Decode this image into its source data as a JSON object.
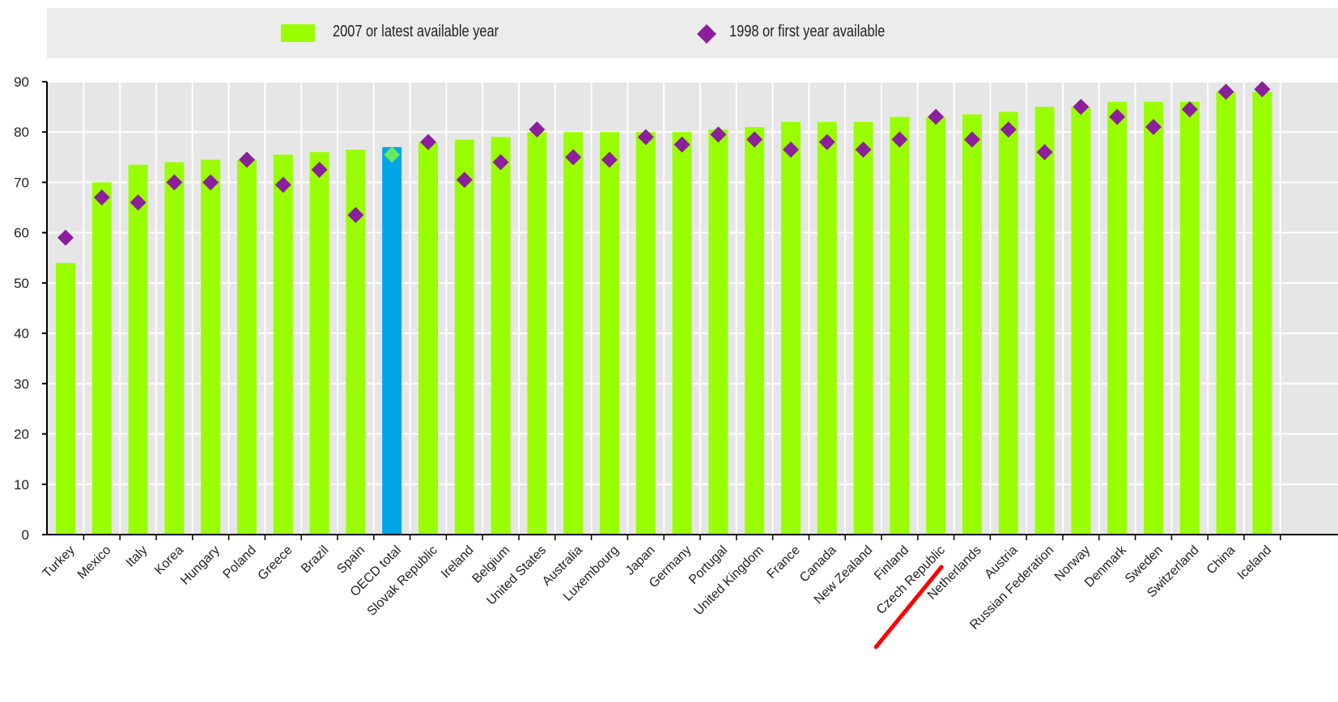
{
  "colors": {
    "bar": "#99ff00",
    "bar_highlight": "#00a6e6",
    "marker": "#8b1f9c",
    "marker_highlight": "#66e860",
    "plot_bg": "#e6e6e6",
    "axis": "#000000",
    "annotation": "#ff0000"
  },
  "chart_data": {
    "type": "bar",
    "ylim": [
      0,
      90
    ],
    "yticks": [
      0,
      10,
      20,
      30,
      40,
      50,
      60,
      70,
      80,
      90
    ],
    "grid": true,
    "legend": "top",
    "categories": [
      "Turkey",
      "Mexico",
      "Italy",
      "Korea",
      "Hungary",
      "Poland",
      "Greece",
      "Brazil",
      "Spain",
      "OECD total",
      "Slovak Republic",
      "Ireland",
      "Belgium",
      "United States",
      "Australia",
      "Luxembourg",
      "Japan",
      "Germany",
      "Portugal",
      "United Kingdom",
      "France",
      "Canada",
      "New Zealand",
      "Finland",
      "Czech Republic",
      "Netherlands",
      "Austria",
      "Russian Federation",
      "Norway",
      "Denmark",
      "Sweden",
      "Switzerland",
      "China",
      "Iceland"
    ],
    "highlight_category": "OECD total",
    "series": [
      {
        "name": "2007 or latest available year",
        "kind": "bar",
        "values": [
          54,
          70,
          73.5,
          74,
          74.5,
          74.5,
          75.5,
          76,
          76.5,
          77,
          78,
          78.5,
          79,
          80,
          80,
          80,
          80,
          80,
          80.5,
          81,
          82,
          82,
          82,
          83,
          83,
          83.5,
          84,
          85,
          85,
          86,
          86,
          86,
          88,
          88
        ]
      },
      {
        "name": "1998 or first year available",
        "kind": "marker",
        "values": [
          59,
          67,
          66,
          70,
          70,
          74.5,
          69.5,
          72.5,
          63.5,
          75.5,
          78,
          70.5,
          74,
          80.5,
          75,
          74.5,
          79,
          77.5,
          79.5,
          78.5,
          76.5,
          78,
          76.5,
          78.5,
          83,
          78.5,
          80.5,
          76,
          85,
          83,
          81,
          84.5,
          88,
          88.5
        ]
      }
    ],
    "annotation": {
      "type": "strike-line",
      "category": "Czech Republic"
    }
  }
}
